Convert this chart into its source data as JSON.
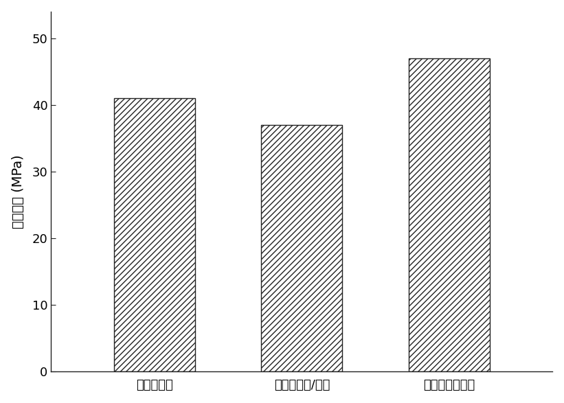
{
  "categories": [
    "地质聚合物",
    "地质聚合物/汞土",
    "本发明复合材料"
  ],
  "values": [
    41.0,
    37.0,
    47.0
  ],
  "ylabel": "抗压强度 (MPa)",
  "ylim": [
    0,
    54
  ],
  "yticks": [
    0,
    10,
    20,
    30,
    40,
    50
  ],
  "bar_facecolor": "white",
  "bar_edgecolor": "#222222",
  "hatch_pattern": "////",
  "bar_width": 0.55,
  "figure_facecolor": "white",
  "axes_facecolor": "white",
  "tick_fontsize": 13,
  "label_fontsize": 14,
  "spine_color": "#222222",
  "line_width": 1.0
}
